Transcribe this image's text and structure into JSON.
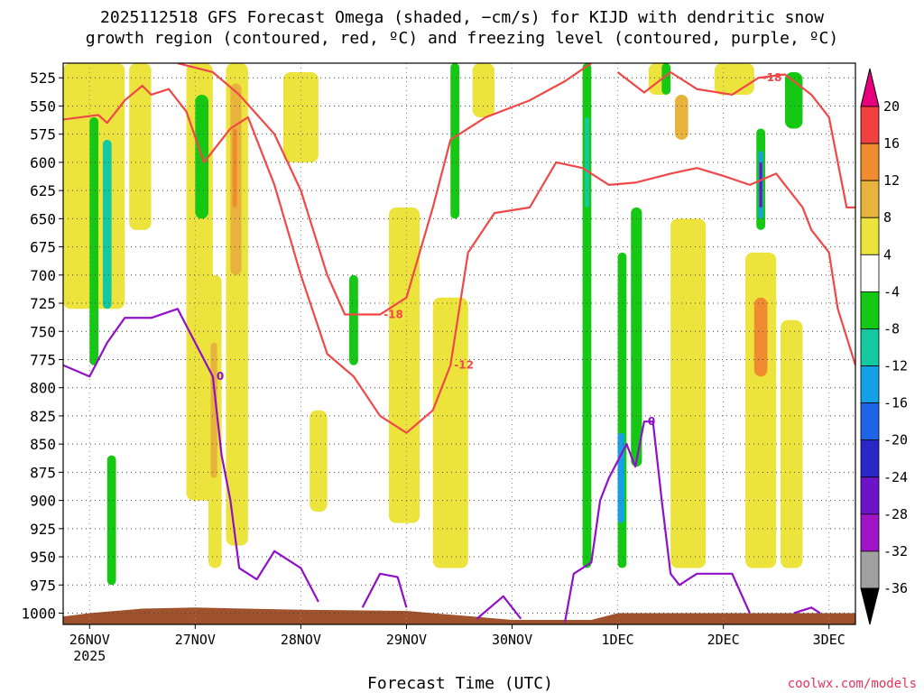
{
  "chart_data": {
    "type": "heatmap",
    "title_line1": "2025112518 GFS Forecast Omega (shaded, −cm/s) for KIJD with dendritic snow",
    "title_line2": "growth region (contoured, red, ºC) and freezing level (contoured, purple, ºC)",
    "xlabel": "Forecast Time (UTC)",
    "credit": "coolwx.com/models",
    "x_axis": {
      "start": "2025-11-25T18:00Z",
      "end": "2025-12-03T06:00Z",
      "ticks": [
        {
          "label": "26NOV",
          "sub": "2025",
          "time": "2025-11-26T00:00Z"
        },
        {
          "label": "27NOV",
          "time": "2025-11-27T00:00Z"
        },
        {
          "label": "28NOV",
          "time": "2025-11-28T00:00Z"
        },
        {
          "label": "29NOV",
          "time": "2025-11-29T00:00Z"
        },
        {
          "label": "30NOV",
          "time": "2025-11-30T00:00Z"
        },
        {
          "label": "1DEC",
          "time": "2025-12-01T00:00Z"
        },
        {
          "label": "2DEC",
          "time": "2025-12-02T00:00Z"
        },
        {
          "label": "3DEC",
          "time": "2025-12-03T00:00Z"
        }
      ]
    },
    "y_axis": {
      "units": "hPa",
      "scale": "pressure (inverted)",
      "range": [
        1010,
        512
      ],
      "ticks": [
        525,
        550,
        575,
        600,
        625,
        650,
        675,
        700,
        725,
        750,
        775,
        800,
        825,
        850,
        875,
        900,
        925,
        950,
        975,
        1000
      ]
    },
    "grid": true,
    "colorbar": {
      "levels": [
        {
          "label": "20",
          "color": "#e6007e"
        },
        {
          "label": "16",
          "color": "#f04040"
        },
        {
          "label": "12",
          "color": "#f08c30"
        },
        {
          "label": "8",
          "color": "#e8b33c"
        },
        {
          "label": "4",
          "color": "#ece43c"
        },
        {
          "label": "-4",
          "color": "#ffffff"
        },
        {
          "label": "-8",
          "color": "#14c814"
        },
        {
          "label": "-12",
          "color": "#14c8a0"
        },
        {
          "label": "-16",
          "color": "#14a0e6"
        },
        {
          "label": "-20",
          "color": "#1e64e6"
        },
        {
          "label": "-24",
          "color": "#2828c8"
        },
        {
          "label": "-28",
          "color": "#6e14c8"
        },
        {
          "label": "-32",
          "color": "#a014c8"
        },
        {
          "label": "-36",
          "color": "#a0a0a0"
        }
      ],
      "top_arrow_color": "#e6007e",
      "bottom_arrow_color": "#000000"
    },
    "shaded_regions": [
      {
        "t0": "2025-11-25T18:00Z",
        "t1": "2025-11-26T08:00Z",
        "p_top": 512,
        "p_bot": 730,
        "value": 4
      },
      {
        "t0": "2025-11-26T00:00Z",
        "t1": "2025-11-26T02:00Z",
        "p_top": 560,
        "p_bot": 780,
        "value": -8
      },
      {
        "t0": "2025-11-26T03:00Z",
        "t1": "2025-11-26T05:00Z",
        "p_top": 580,
        "p_bot": 730,
        "value": -12
      },
      {
        "t0": "2025-11-26T04:00Z",
        "t1": "2025-11-26T06:00Z",
        "p_top": 860,
        "p_bot": 975,
        "value": -8
      },
      {
        "t0": "2025-11-26T09:00Z",
        "t1": "2025-11-26T14:00Z",
        "p_top": 512,
        "p_bot": 660,
        "value": 4
      },
      {
        "t0": "2025-11-26T22:00Z",
        "t1": "2025-11-27T04:00Z",
        "p_top": 512,
        "p_bot": 900,
        "value": 4
      },
      {
        "t0": "2025-11-27T00:00Z",
        "t1": "2025-11-27T03:00Z",
        "p_top": 540,
        "p_bot": 650,
        "value": -8
      },
      {
        "t0": "2025-11-27T03:00Z",
        "t1": "2025-11-27T06:00Z",
        "p_top": 700,
        "p_bot": 960,
        "value": 4
      },
      {
        "t0": "2025-11-27T03:30Z",
        "t1": "2025-11-27T05:00Z",
        "p_top": 760,
        "p_bot": 880,
        "value": 8
      },
      {
        "t0": "2025-11-27T07:00Z",
        "t1": "2025-11-27T12:00Z",
        "p_top": 512,
        "p_bot": 940,
        "value": 4
      },
      {
        "t0": "2025-11-27T08:00Z",
        "t1": "2025-11-27T10:30Z",
        "p_top": 530,
        "p_bot": 700,
        "value": 8
      },
      {
        "t0": "2025-11-27T08:30Z",
        "t1": "2025-11-27T09:30Z",
        "p_top": 570,
        "p_bot": 640,
        "value": 12
      },
      {
        "t0": "2025-11-27T20:00Z",
        "t1": "2025-11-28T04:00Z",
        "p_top": 520,
        "p_bot": 600,
        "value": 4
      },
      {
        "t0": "2025-11-28T02:00Z",
        "t1": "2025-11-28T06:00Z",
        "p_top": 820,
        "p_bot": 910,
        "value": 4
      },
      {
        "t0": "2025-11-28T11:00Z",
        "t1": "2025-11-28T13:00Z",
        "p_top": 700,
        "p_bot": 780,
        "value": -8
      },
      {
        "t0": "2025-11-28T20:00Z",
        "t1": "2025-11-29T03:00Z",
        "p_top": 640,
        "p_bot": 920,
        "value": 4
      },
      {
        "t0": "2025-11-29T06:00Z",
        "t1": "2025-11-29T14:00Z",
        "p_top": 720,
        "p_bot": 960,
        "value": 4
      },
      {
        "t0": "2025-11-29T10:00Z",
        "t1": "2025-11-29T12:00Z",
        "p_top": 512,
        "p_bot": 650,
        "value": -8
      },
      {
        "t0": "2025-11-29T15:00Z",
        "t1": "2025-11-29T20:00Z",
        "p_top": 512,
        "p_bot": 560,
        "value": 4
      },
      {
        "t0": "2025-11-30T16:00Z",
        "t1": "2025-11-30T18:00Z",
        "p_top": 512,
        "p_bot": 960,
        "value": -8
      },
      {
        "t0": "2025-11-30T16:30Z",
        "t1": "2025-11-30T17:30Z",
        "p_top": 560,
        "p_bot": 640,
        "value": -12
      },
      {
        "t0": "2025-12-01T00:00Z",
        "t1": "2025-12-01T02:00Z",
        "p_top": 680,
        "p_bot": 960,
        "value": -8
      },
      {
        "t0": "2025-12-01T00:00Z",
        "t1": "2025-12-01T01:30Z",
        "p_top": 840,
        "p_bot": 920,
        "value": -16
      },
      {
        "t0": "2025-12-01T03:00Z",
        "t1": "2025-12-01T05:30Z",
        "p_top": 640,
        "p_bot": 870,
        "value": -8
      },
      {
        "t0": "2025-12-01T07:00Z",
        "t1": "2025-12-01T12:00Z",
        "p_top": 512,
        "p_bot": 540,
        "value": 4
      },
      {
        "t0": "2025-12-01T10:00Z",
        "t1": "2025-12-01T12:00Z",
        "p_top": 512,
        "p_bot": 540,
        "value": -8
      },
      {
        "t0": "2025-12-01T12:00Z",
        "t1": "2025-12-01T20:00Z",
        "p_top": 650,
        "p_bot": 960,
        "value": 4
      },
      {
        "t0": "2025-12-01T13:00Z",
        "t1": "2025-12-01T16:00Z",
        "p_top": 540,
        "p_bot": 580,
        "value": 8
      },
      {
        "t0": "2025-12-01T22:00Z",
        "t1": "2025-12-02T07:00Z",
        "p_top": 512,
        "p_bot": 540,
        "value": 4
      },
      {
        "t0": "2025-12-02T05:00Z",
        "t1": "2025-12-02T12:00Z",
        "p_top": 680,
        "p_bot": 960,
        "value": 4
      },
      {
        "t0": "2025-12-02T07:00Z",
        "t1": "2025-12-02T10:00Z",
        "p_top": 720,
        "p_bot": 790,
        "value": 12
      },
      {
        "t0": "2025-12-02T07:30Z",
        "t1": "2025-12-02T09:30Z",
        "p_top": 570,
        "p_bot": 660,
        "value": -8
      },
      {
        "t0": "2025-12-02T08:00Z",
        "t1": "2025-12-02T09:00Z",
        "p_top": 590,
        "p_bot": 650,
        "value": -16
      },
      {
        "t0": "2025-12-02T08:10Z",
        "t1": "2025-12-02T08:50Z",
        "p_top": 600,
        "p_bot": 640,
        "value": -28
      },
      {
        "t0": "2025-12-02T14:00Z",
        "t1": "2025-12-02T18:00Z",
        "p_top": 520,
        "p_bot": 570,
        "value": -8
      },
      {
        "t0": "2025-12-02T13:00Z",
        "t1": "2025-12-02T18:00Z",
        "p_top": 740,
        "p_bot": 960,
        "value": 4
      }
    ],
    "red_contours": [
      {
        "label": "-12",
        "points": [
          [
            "2025-11-25T18:00Z",
            562
          ],
          [
            "2025-11-26T02:00Z",
            558
          ],
          [
            "2025-11-26T04:00Z",
            565
          ],
          [
            "2025-11-26T08:00Z",
            545
          ],
          [
            "2025-11-26T12:00Z",
            532
          ],
          [
            "2025-11-26T14:00Z",
            540
          ],
          [
            "2025-11-26T18:00Z",
            535
          ],
          [
            "2025-11-26T22:00Z",
            555
          ],
          [
            "2025-11-27T02:00Z",
            600
          ],
          [
            "2025-11-27T08:00Z",
            570
          ],
          [
            "2025-11-27T12:00Z",
            560
          ],
          [
            "2025-11-27T18:00Z",
            620
          ],
          [
            "2025-11-28T00:00Z",
            700
          ],
          [
            "2025-11-28T06:00Z",
            770
          ],
          [
            "2025-11-28T12:00Z",
            790
          ],
          [
            "2025-11-28T18:00Z",
            825
          ],
          [
            "2025-11-29T00:00Z",
            840
          ],
          [
            "2025-11-29T06:00Z",
            820
          ],
          [
            "2025-11-29T10:00Z",
            780
          ],
          [
            "2025-11-29T14:00Z",
            680
          ],
          [
            "2025-11-29T20:00Z",
            645
          ],
          [
            "2025-11-30T04:00Z",
            640
          ],
          [
            "2025-11-30T10:00Z",
            600
          ],
          [
            "2025-11-30T16:00Z",
            605
          ],
          [
            "2025-11-30T22:00Z",
            620
          ],
          [
            "2025-12-01T04:00Z",
            618
          ],
          [
            "2025-12-01T12:00Z",
            610
          ],
          [
            "2025-12-01T18:00Z",
            605
          ],
          [
            "2025-12-02T00:00Z",
            612
          ],
          [
            "2025-12-02T06:00Z",
            620
          ],
          [
            "2025-12-02T12:00Z",
            610
          ],
          [
            "2025-12-02T18:00Z",
            640
          ],
          [
            "2025-12-02T20:00Z",
            660
          ],
          [
            "2025-12-03T00:00Z",
            680
          ],
          [
            "2025-12-03T02:00Z",
            730
          ],
          [
            "2025-12-03T06:00Z",
            780
          ]
        ]
      },
      {
        "label": "-18",
        "points": [
          [
            "2025-11-26T20:00Z",
            512
          ],
          [
            "2025-11-27T04:00Z",
            520
          ],
          [
            "2025-11-27T10:00Z",
            540
          ],
          [
            "2025-11-27T18:00Z",
            575
          ],
          [
            "2025-11-28T00:00Z",
            625
          ],
          [
            "2025-11-28T06:00Z",
            700
          ],
          [
            "2025-11-28T10:00Z",
            735
          ],
          [
            "2025-11-28T18:00Z",
            735
          ],
          [
            "2025-11-29T00:00Z",
            720
          ],
          [
            "2025-11-29T06:00Z",
            640
          ],
          [
            "2025-11-29T10:00Z",
            580
          ],
          [
            "2025-11-29T18:00Z",
            560
          ],
          [
            "2025-11-30T04:00Z",
            545
          ],
          [
            "2025-11-30T12:00Z",
            528
          ],
          [
            "2025-11-30T18:00Z",
            512
          ]
        ]
      },
      {
        "label": "-18",
        "points": [
          [
            "2025-12-01T00:00Z",
            520
          ],
          [
            "2025-12-01T06:00Z",
            538
          ],
          [
            "2025-12-01T12:00Z",
            520
          ],
          [
            "2025-12-01T18:00Z",
            535
          ],
          [
            "2025-12-02T02:00Z",
            540
          ],
          [
            "2025-12-02T08:00Z",
            525
          ],
          [
            "2025-12-02T14:00Z",
            522
          ],
          [
            "2025-12-02T20:00Z",
            540
          ],
          [
            "2025-12-03T00:00Z",
            560
          ],
          [
            "2025-12-03T04:00Z",
            640
          ],
          [
            "2025-12-03T06:00Z",
            640
          ]
        ]
      }
    ],
    "purple_contours": [
      {
        "label": "0",
        "points": [
          [
            "2025-11-25T18:00Z",
            780
          ],
          [
            "2025-11-26T00:00Z",
            790
          ],
          [
            "2025-11-26T04:00Z",
            760
          ],
          [
            "2025-11-26T08:00Z",
            738
          ],
          [
            "2025-11-26T14:00Z",
            738
          ],
          [
            "2025-11-26T20:00Z",
            730
          ],
          [
            "2025-11-27T00:00Z",
            760
          ],
          [
            "2025-11-27T04:00Z",
            790
          ],
          [
            "2025-11-27T06:00Z",
            860
          ],
          [
            "2025-11-27T08:00Z",
            900
          ],
          [
            "2025-11-27T10:00Z",
            960
          ],
          [
            "2025-11-27T14:00Z",
            970
          ],
          [
            "2025-11-27T18:00Z",
            945
          ],
          [
            "2025-11-28T00:00Z",
            960
          ],
          [
            "2025-11-28T04:00Z",
            990
          ]
        ]
      },
      {
        "label": "",
        "points": [
          [
            "2025-11-28T14:00Z",
            995
          ],
          [
            "2025-11-28T18:00Z",
            965
          ],
          [
            "2025-11-28T22:00Z",
            968
          ],
          [
            "2025-11-29T00:00Z",
            995
          ]
        ]
      },
      {
        "label": "",
        "points": [
          [
            "2025-11-29T16:00Z",
            1005
          ],
          [
            "2025-11-29T22:00Z",
            985
          ],
          [
            "2025-11-30T02:00Z",
            1005
          ]
        ]
      },
      {
        "label": "0",
        "points": [
          [
            "2025-11-30T12:00Z",
            1008
          ],
          [
            "2025-11-30T14:00Z",
            965
          ],
          [
            "2025-11-30T18:00Z",
            955
          ],
          [
            "2025-11-30T20:00Z",
            900
          ],
          [
            "2025-11-30T22:00Z",
            880
          ],
          [
            "2025-12-01T02:00Z",
            850
          ],
          [
            "2025-12-01T04:00Z",
            870
          ],
          [
            "2025-12-01T06:00Z",
            830
          ],
          [
            "2025-12-01T08:00Z",
            830
          ],
          [
            "2025-12-01T10:00Z",
            900
          ],
          [
            "2025-12-01T12:00Z",
            965
          ],
          [
            "2025-12-01T14:00Z",
            975
          ],
          [
            "2025-12-01T18:00Z",
            965
          ],
          [
            "2025-12-02T02:00Z",
            965
          ],
          [
            "2025-12-02T06:00Z",
            1000
          ]
        ]
      },
      {
        "label": "",
        "points": [
          [
            "2025-12-02T16:00Z",
            1000
          ],
          [
            "2025-12-02T20:00Z",
            995
          ],
          [
            "2025-12-02T22:00Z",
            1000
          ]
        ]
      }
    ],
    "terrain": {
      "color": "#a0522d",
      "surface": [
        [
          "2025-11-25T18:00Z",
          1003
        ],
        [
          "2025-11-26T00:00Z",
          1000
        ],
        [
          "2025-11-26T12:00Z",
          996
        ],
        [
          "2025-11-27T00:00Z",
          995
        ],
        [
          "2025-11-28T00:00Z",
          997
        ],
        [
          "2025-11-29T00:00Z",
          998
        ],
        [
          "2025-11-30T00:00Z",
          1006
        ],
        [
          "2025-11-30T18:00Z",
          1006
        ],
        [
          "2025-12-01T00:00Z",
          1000
        ],
        [
          "2025-12-02T00:00Z",
          1000
        ],
        [
          "2025-12-03T06:00Z",
          1000
        ]
      ]
    }
  }
}
